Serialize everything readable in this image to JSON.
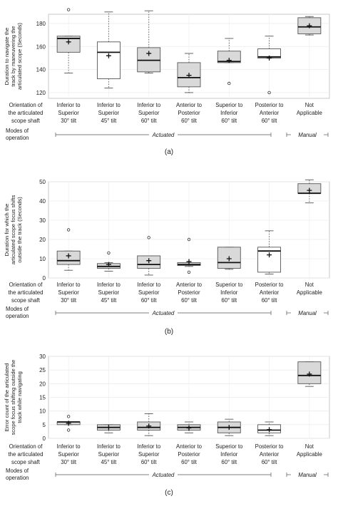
{
  "figure": {
    "row_label_orientation": [
      "Orientation of",
      "the articulated",
      "scope shaft"
    ],
    "row_label_modes": [
      "Modes of",
      "operation"
    ],
    "actuated_label": "Actuated",
    "manual_label": "Manual",
    "categories": [
      [
        "Inferior to",
        "Superior",
        "30° tilt"
      ],
      [
        "Inferior to",
        "Superior",
        "45° tilt"
      ],
      [
        "Inferior to",
        "Superior",
        "60° tilt"
      ],
      [
        "Anterior to",
        "Posterior",
        "60° tilt"
      ],
      [
        "Superior to",
        "Inferior",
        "60° tilt"
      ],
      [
        "Posterior to",
        "Anterior",
        "60° tilt"
      ],
      [
        "Not",
        "Applicable",
        ""
      ]
    ]
  },
  "chart_data": [
    {
      "type": "box",
      "panel_label": "(a)",
      "ylabel": [
        "Duration to navigate the",
        "track by maneuvering the",
        "articulated scope (Seconds)"
      ],
      "ylim": [
        115,
        188
      ],
      "yticks": [
        120,
        140,
        160,
        180
      ],
      "grid": true,
      "boxes": [
        {
          "whisker_low": 137,
          "q1": 155,
          "median": 167,
          "q3": 169,
          "whisker_high": 169,
          "mean": 164,
          "outliers": [
            192
          ],
          "fill": "#d9d9d9"
        },
        {
          "whisker_low": 124,
          "q1": 132,
          "median": 155,
          "q3": 164,
          "whisker_high": 190,
          "mean": 152,
          "outliers": [],
          "fill": "#ffffff"
        },
        {
          "whisker_low": 137,
          "q1": 138,
          "median": 148,
          "q3": 159,
          "whisker_high": 191,
          "mean": 154,
          "outliers": [],
          "fill": "#d9d9d9"
        },
        {
          "whisker_low": 120,
          "q1": 125,
          "median": 133,
          "q3": 146,
          "whisker_high": 154,
          "mean": 135,
          "outliers": [],
          "fill": "#d9d9d9"
        },
        {
          "whisker_low": 146,
          "q1": 146,
          "median": 147,
          "q3": 156,
          "whisker_high": 167,
          "mean": 148,
          "outliers": [
            128
          ],
          "fill": "#d9d9d9"
        },
        {
          "whisker_low": 150,
          "q1": 150,
          "median": 151,
          "q3": 158,
          "whisker_high": 169,
          "mean": 150,
          "outliers": [
            120
          ],
          "fill": "#ffffff"
        },
        {
          "whisker_low": 170,
          "q1": 171,
          "median": 177,
          "q3": 185,
          "whisker_high": 186,
          "mean": 178,
          "outliers": [],
          "fill": "#d9d9d9"
        }
      ]
    },
    {
      "type": "box",
      "panel_label": "(b)",
      "ylabel": [
        "Duration for which the",
        "articulated scope focus shifts",
        "outside the track (Seconds)"
      ],
      "ylim": [
        0,
        50
      ],
      "yticks": [
        0,
        10,
        20,
        30,
        40,
        50
      ],
      "grid": true,
      "boxes": [
        {
          "whisker_low": 4,
          "q1": 7,
          "median": 9,
          "q3": 14,
          "whisker_high": 14,
          "mean": 11.5,
          "outliers": [
            25
          ],
          "fill": "#d9d9d9"
        },
        {
          "whisker_low": 3.5,
          "q1": 5,
          "median": 6,
          "q3": 7.5,
          "whisker_high": 8,
          "mean": 7,
          "outliers": [
            13
          ],
          "fill": "#d9d9d9"
        },
        {
          "whisker_low": 1.5,
          "q1": 5,
          "median": 7,
          "q3": 11.5,
          "whisker_high": 11.5,
          "mean": 9,
          "outliers": [
            21
          ],
          "fill": "#d9d9d9"
        },
        {
          "whisker_low": 6,
          "q1": 6.5,
          "median": 7,
          "q3": 8,
          "whisker_high": 8,
          "mean": 8.5,
          "outliers": [
            20,
            3
          ],
          "fill": "#d9d9d9"
        },
        {
          "whisker_low": 4.5,
          "q1": 5,
          "median": 8,
          "q3": 16,
          "whisker_high": 16,
          "mean": 10,
          "outliers": [],
          "fill": "#d9d9d9"
        },
        {
          "whisker_low": 2,
          "q1": 3,
          "median": 14,
          "q3": 16,
          "whisker_high": 24.5,
          "mean": 12,
          "outliers": [],
          "fill": "#ffffff"
        },
        {
          "whisker_low": 39,
          "q1": 44,
          "median": 44,
          "q3": 49,
          "whisker_high": 51,
          "mean": 45.5,
          "outliers": [],
          "fill": "#d9d9d9"
        }
      ]
    },
    {
      "type": "box",
      "panel_label": "(c)",
      "ylabel": [
        "Error count of the articulated",
        "scope focus shifting outside the",
        "track while navigating"
      ],
      "ylim": [
        0,
        30
      ],
      "yticks": [
        0,
        5,
        10,
        15,
        20,
        25,
        30
      ],
      "grid": true,
      "boxes": [
        {
          "whisker_low": 5,
          "q1": 5,
          "median": 6,
          "q3": 6,
          "whisker_high": 6,
          "mean": 5.5,
          "outliers": [
            8,
            3
          ],
          "fill": "#d9d9d9"
        },
        {
          "whisker_low": 2,
          "q1": 3,
          "median": 4,
          "q3": 5,
          "whisker_high": 5,
          "mean": 4,
          "outliers": [],
          "fill": "#d9d9d9"
        },
        {
          "whisker_low": 1,
          "q1": 3,
          "median": 4,
          "q3": 6,
          "whisker_high": 9,
          "mean": 4.5,
          "outliers": [],
          "fill": "#d9d9d9"
        },
        {
          "whisker_low": 2,
          "q1": 3,
          "median": 4,
          "q3": 5,
          "whisker_high": 6,
          "mean": 3.8,
          "outliers": [],
          "fill": "#d9d9d9"
        },
        {
          "whisker_low": 1,
          "q1": 2,
          "median": 4,
          "q3": 6,
          "whisker_high": 7,
          "mean": 4,
          "outliers": [],
          "fill": "#d9d9d9"
        },
        {
          "whisker_low": 1,
          "q1": 2,
          "median": 3,
          "q3": 5,
          "whisker_high": 6,
          "mean": 3.2,
          "outliers": [],
          "fill": "#ffffff"
        },
        {
          "whisker_low": 19,
          "q1": 20,
          "median": 23,
          "q3": 28,
          "whisker_high": 28,
          "mean": 23.5,
          "outliers": [],
          "fill": "#d9d9d9"
        }
      ]
    }
  ]
}
